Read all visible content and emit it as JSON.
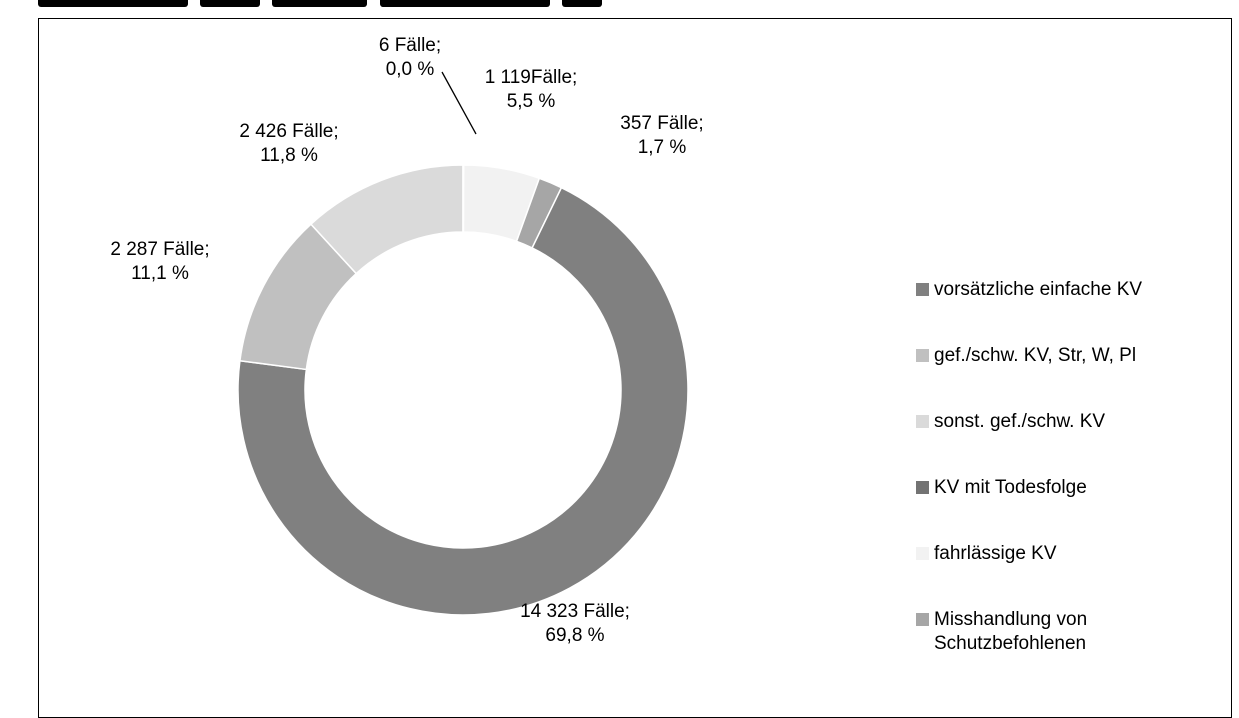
{
  "chart_data": {
    "type": "pie",
    "donut": true,
    "title": "",
    "legend_placement": "right",
    "slices": [
      {
        "name": "vorsätzliche einfache KV",
        "cases": "14 323",
        "percent": 69.8,
        "label_line1": "14 323 Fälle;",
        "label_line2": "69,8 %",
        "color": "#808080"
      },
      {
        "name": "gef./schw. KV, Str, W, Pl",
        "cases": "2 287",
        "percent": 11.1,
        "label_line1": "2 287 Fälle;",
        "label_line2": "11,1 %",
        "color": "#c0c0c0"
      },
      {
        "name": "sonst. gef./schw. KV",
        "cases": "2 426",
        "percent": 11.8,
        "label_line1": "2 426 Fälle;",
        "label_line2": "11,8 %",
        "color": "#dadada"
      },
      {
        "name": "KV mit Todesfolge",
        "cases": "6",
        "percent": 0.0,
        "label_line1": "6 Fälle;",
        "label_line2": "0,0 %",
        "color": "#737373"
      },
      {
        "name": "fahrlässige KV",
        "cases": "1 119",
        "percent": 5.5,
        "label_line1": "1 119Fälle;",
        "label_line2": "5,5 %",
        "color": "#f2f2f2"
      },
      {
        "name": "Misshandlung von Schutzbefohlenen",
        "cases": "357",
        "percent": 1.7,
        "label_line1": "357 Fälle;",
        "label_line2": "1,7 %",
        "color": "#a6a6a6"
      }
    ],
    "legend_lines": [
      [
        "vorsätzliche einfache KV"
      ],
      [
        "gef./schw. KV, Str, W, Pl"
      ],
      [
        "sonst. gef./schw. KV"
      ],
      [
        "KV mit Todesfolge"
      ],
      [
        "fahrlässige KV"
      ],
      [
        "Misshandlung von",
        "Schutzbefohlenen"
      ]
    ]
  }
}
